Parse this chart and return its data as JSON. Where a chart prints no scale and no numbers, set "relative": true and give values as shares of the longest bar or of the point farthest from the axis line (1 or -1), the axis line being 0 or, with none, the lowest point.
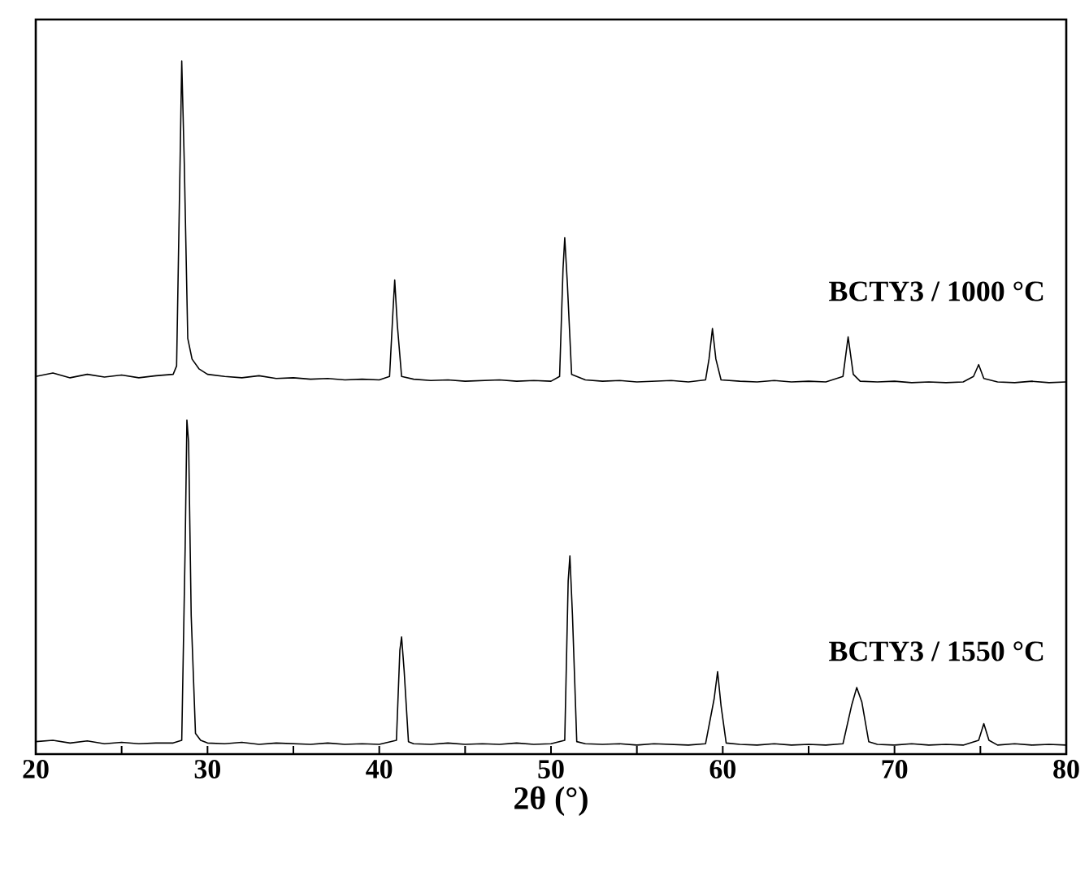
{
  "chart_data": {
    "type": "line",
    "xlabel": "2θ (°)",
    "relative": true,
    "xlim": [
      20,
      80
    ],
    "xticks": [
      20,
      {
        "value": 25,
        "label": null
      },
      30,
      {
        "value": 35,
        "label": null
      },
      40,
      {
        "value": 45,
        "label": null
      },
      50,
      {
        "value": 55,
        "label": null
      },
      60,
      {
        "value": 65,
        "label": null
      },
      70,
      {
        "value": 75,
        "label": null
      },
      80
    ],
    "tick_labels": "x",
    "grid": false,
    "legend": false,
    "marker": "none",
    "line_style": "solid",
    "series": [
      {
        "name": "BCTY3 / 1000 °C",
        "color": "#000000",
        "x": [
          20,
          21,
          22,
          23,
          24,
          25,
          26,
          27,
          28,
          28.2,
          28.4,
          28.5,
          28.65,
          28.85,
          29.1,
          29.5,
          30,
          31,
          32,
          33,
          34,
          35,
          36,
          37,
          38,
          39,
          40,
          40.6,
          40.8,
          40.9,
          41.05,
          41.3,
          42,
          43,
          44,
          45,
          46,
          47,
          48,
          49,
          50,
          50.5,
          50.7,
          50.8,
          50.95,
          51.2,
          52,
          53,
          54,
          55,
          56,
          57,
          58,
          59,
          59.2,
          59.4,
          59.6,
          59.9,
          61,
          62,
          63,
          64,
          65,
          66,
          67,
          67.3,
          67.6,
          68,
          69,
          70,
          71,
          72,
          73,
          74,
          74.6,
          74.9,
          75.2,
          76,
          77,
          78,
          79,
          80
        ],
        "values": [
          0.545,
          0.55,
          0.543,
          0.548,
          0.544,
          0.547,
          0.543,
          0.546,
          0.548,
          0.56,
          0.85,
          1,
          0.85,
          0.6,
          0.57,
          0.556,
          0.548,
          0.545,
          0.543,
          0.546,
          0.542,
          0.543,
          0.541,
          0.542,
          0.54,
          0.541,
          0.54,
          0.545,
          0.64,
          0.684,
          0.62,
          0.545,
          0.541,
          0.539,
          0.54,
          0.538,
          0.539,
          0.54,
          0.538,
          0.539,
          0.538,
          0.545,
          0.7,
          0.745,
          0.68,
          0.548,
          0.54,
          0.538,
          0.539,
          0.537,
          0.538,
          0.539,
          0.537,
          0.54,
          0.57,
          0.614,
          0.57,
          0.54,
          0.538,
          0.537,
          0.539,
          0.537,
          0.538,
          0.537,
          0.545,
          0.602,
          0.548,
          0.538,
          0.537,
          0.538,
          0.536,
          0.537,
          0.536,
          0.537,
          0.545,
          0.562,
          0.542,
          0.537,
          0.536,
          0.538,
          0.536,
          0.537
        ]
      },
      {
        "name": "BCTY3 / 1550 °C",
        "color": "#000000",
        "x": [
          20,
          21,
          22,
          23,
          24,
          25,
          26,
          27,
          28,
          28.5,
          28.7,
          28.8,
          28.9,
          29.05,
          29.3,
          29.6,
          30,
          31,
          32,
          33,
          34,
          35,
          36,
          37,
          38,
          39,
          40,
          41,
          41.2,
          41.3,
          41.45,
          41.7,
          42,
          43,
          44,
          45,
          46,
          47,
          48,
          49,
          50,
          50.8,
          51,
          51.1,
          51.25,
          51.5,
          52,
          53,
          54,
          55,
          56,
          57,
          58,
          59,
          59.5,
          59.7,
          59.9,
          60.2,
          61,
          62,
          63,
          64,
          65,
          66,
          67,
          67.5,
          67.8,
          68.1,
          68.5,
          69,
          70,
          71,
          72,
          73,
          74,
          74.9,
          75.2,
          75.5,
          76,
          77,
          78,
          79,
          80
        ],
        "values": [
          0.018,
          0.02,
          0.016,
          0.019,
          0.015,
          0.017,
          0.015,
          0.016,
          0.016,
          0.02,
          0.3,
          0.482,
          0.45,
          0.2,
          0.03,
          0.02,
          0.016,
          0.015,
          0.017,
          0.014,
          0.016,
          0.015,
          0.014,
          0.016,
          0.014,
          0.015,
          0.014,
          0.02,
          0.15,
          0.169,
          0.12,
          0.018,
          0.015,
          0.014,
          0.016,
          0.014,
          0.015,
          0.014,
          0.016,
          0.014,
          0.015,
          0.02,
          0.25,
          0.286,
          0.2,
          0.018,
          0.015,
          0.014,
          0.015,
          0.013,
          0.015,
          0.014,
          0.013,
          0.015,
          0.08,
          0.119,
          0.07,
          0.016,
          0.014,
          0.013,
          0.015,
          0.013,
          0.014,
          0.013,
          0.015,
          0.07,
          0.096,
          0.075,
          0.018,
          0.014,
          0.013,
          0.015,
          0.013,
          0.014,
          0.013,
          0.02,
          0.044,
          0.02,
          0.013,
          0.015,
          0.013,
          0.014,
          0.013
        ]
      }
    ]
  }
}
